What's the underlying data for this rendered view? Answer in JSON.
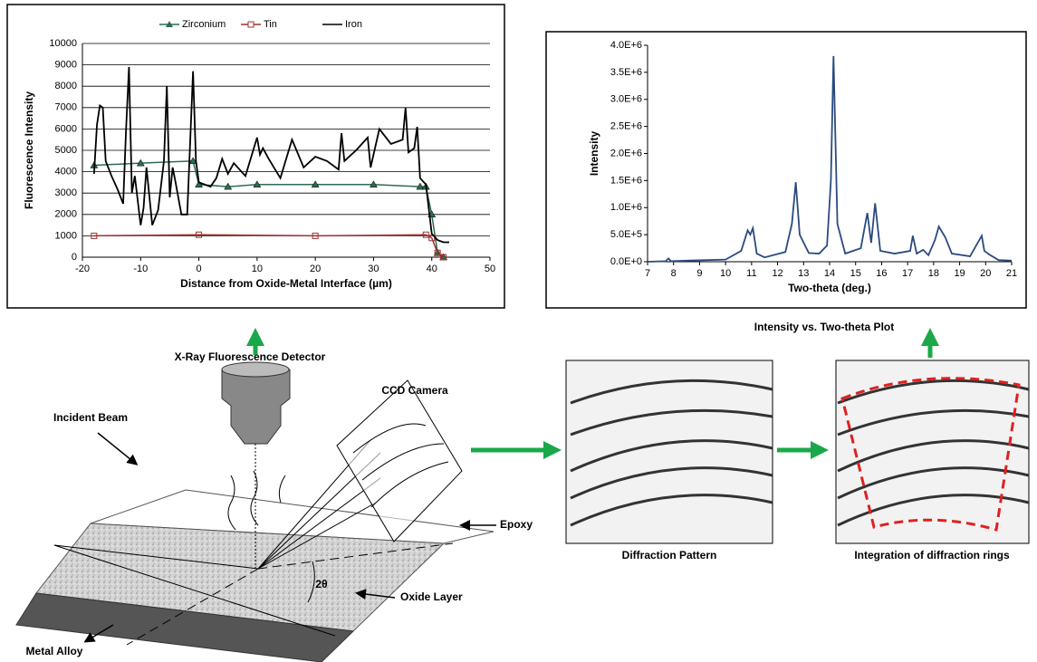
{
  "chart_data": [
    {
      "type": "line",
      "x_label": "Distance from Oxide-Metal Interface (µm)",
      "y_label": "Fluorescence Intensity",
      "xlim": [
        -20,
        50
      ],
      "xticks": [
        -20,
        -10,
        0,
        10,
        20,
        30,
        40,
        50
      ],
      "ylim": [
        0,
        10000
      ],
      "yticks": [
        0,
        1000,
        2000,
        3000,
        4000,
        5000,
        6000,
        7000,
        8000,
        9000,
        10000
      ],
      "grid": true,
      "legend": "top",
      "series": [
        {
          "name": "Zirconium",
          "color": "#2e6b4f",
          "marker": "triangle",
          "x": [
            -18,
            -10,
            -1,
            0,
            5,
            10,
            20,
            30,
            38,
            39,
            40,
            41,
            42
          ],
          "values": [
            4300,
            4400,
            4500,
            3400,
            3300,
            3400,
            3400,
            3400,
            3300,
            3300,
            2000,
            200,
            0
          ]
        },
        {
          "name": "Tin",
          "color": "#a03030",
          "marker": "square",
          "x": [
            -18,
            0,
            20,
            39,
            40,
            41,
            42
          ],
          "values": [
            1000,
            1050,
            1000,
            1050,
            900,
            200,
            0
          ]
        },
        {
          "name": "Iron",
          "color": "#000000",
          "marker": "none",
          "x": [
            -18,
            -17.5,
            -17,
            -16.5,
            -16,
            -15,
            -14,
            -13,
            -12.5,
            -12,
            -11.5,
            -11,
            -10,
            -9.5,
            -9,
            -8,
            -7,
            -6,
            -5.5,
            -5,
            -4.5,
            -4,
            -3,
            -2,
            -1,
            -0.5,
            0,
            1,
            2,
            3,
            4,
            5,
            6,
            8,
            10,
            10.5,
            11,
            12,
            14,
            16,
            18,
            20,
            22,
            24,
            24.5,
            25,
            27,
            29,
            29.5,
            31,
            33,
            35,
            35.5,
            36,
            37,
            37.5,
            38,
            39,
            40,
            41,
            42,
            43
          ],
          "values": [
            3900,
            6200,
            7100,
            7000,
            4500,
            3800,
            3200,
            2500,
            6000,
            8900,
            3000,
            3800,
            1500,
            2300,
            4200,
            1500,
            2200,
            4500,
            8000,
            2800,
            4200,
            3500,
            2000,
            2000,
            8700,
            4500,
            3500,
            3400,
            3300,
            3700,
            4600,
            3900,
            4400,
            3800,
            5600,
            4800,
            5100,
            4600,
            3700,
            5500,
            4200,
            4700,
            4500,
            4100,
            5800,
            4500,
            5000,
            5600,
            4200,
            6000,
            5300,
            5500,
            7000,
            4900,
            5100,
            6100,
            3700,
            3400,
            1100,
            800,
            700,
            700
          ]
        }
      ]
    },
    {
      "type": "line",
      "x_label": "Two-theta (deg.)",
      "y_label": "Intensity",
      "xlim": [
        7,
        21
      ],
      "xticks": [
        7,
        8,
        9,
        10,
        11,
        12,
        13,
        14,
        15,
        16,
        17,
        18,
        19,
        20,
        21
      ],
      "ylim": [
        0,
        4000000
      ],
      "yticks": [
        {
          "value": 0,
          "label": "0.0E+0"
        },
        {
          "value": 500000,
          "label": "5.0E+5"
        },
        {
          "value": 1000000,
          "label": "1.0E+6"
        },
        {
          "value": 1500000,
          "label": "1.5E+6"
        },
        {
          "value": 2000000,
          "label": "2.0E+6"
        },
        {
          "value": 2500000,
          "label": "2.5E+6"
        },
        {
          "value": 3000000,
          "label": "3.0E+6"
        },
        {
          "value": 3500000,
          "label": "3.5E+6"
        },
        {
          "value": 4000000,
          "label": "4.0E+6"
        }
      ],
      "grid": false,
      "x": [
        7,
        7.7,
        7.8,
        7.9,
        8.5,
        10,
        10.6,
        10.85,
        10.95,
        11.05,
        11.2,
        11.5,
        12.3,
        12.55,
        12.7,
        12.85,
        13.2,
        13.6,
        13.9,
        14.05,
        14.15,
        14.3,
        14.6,
        15.2,
        15.45,
        15.6,
        15.75,
        15.95,
        16.5,
        17.1,
        17.2,
        17.35,
        17.6,
        17.8,
        18.05,
        18.2,
        18.45,
        18.7,
        19.4,
        19.85,
        19.95,
        20.15,
        20.5,
        21
      ],
      "series": [
        {
          "color": "#2a4a7f",
          "marker": "none",
          "values": [
            0,
            10000,
            60000,
            10000,
            20000,
            40000,
            200000,
            580000,
            500000,
            620000,
            150000,
            80000,
            180000,
            700000,
            1470000,
            500000,
            160000,
            150000,
            300000,
            1500000,
            3800000,
            700000,
            150000,
            250000,
            900000,
            350000,
            1080000,
            200000,
            150000,
            200000,
            480000,
            150000,
            220000,
            120000,
            400000,
            650000,
            450000,
            150000,
            100000,
            480000,
            200000,
            130000,
            30000,
            20000
          ]
        }
      ]
    }
  ],
  "diagram": {
    "detector": "X-Ray Fluorescence Detector",
    "incident": "Incident Beam",
    "ccd": "CCD Camera",
    "epoxy": "Epoxy",
    "oxide": "Oxide Layer",
    "metal": "Metal Alloy",
    "angle": "2θ",
    "pattern": "Diffraction Pattern",
    "integration": "Integration of diffraction rings",
    "plot": "Intensity vs. Two-theta Plot"
  }
}
